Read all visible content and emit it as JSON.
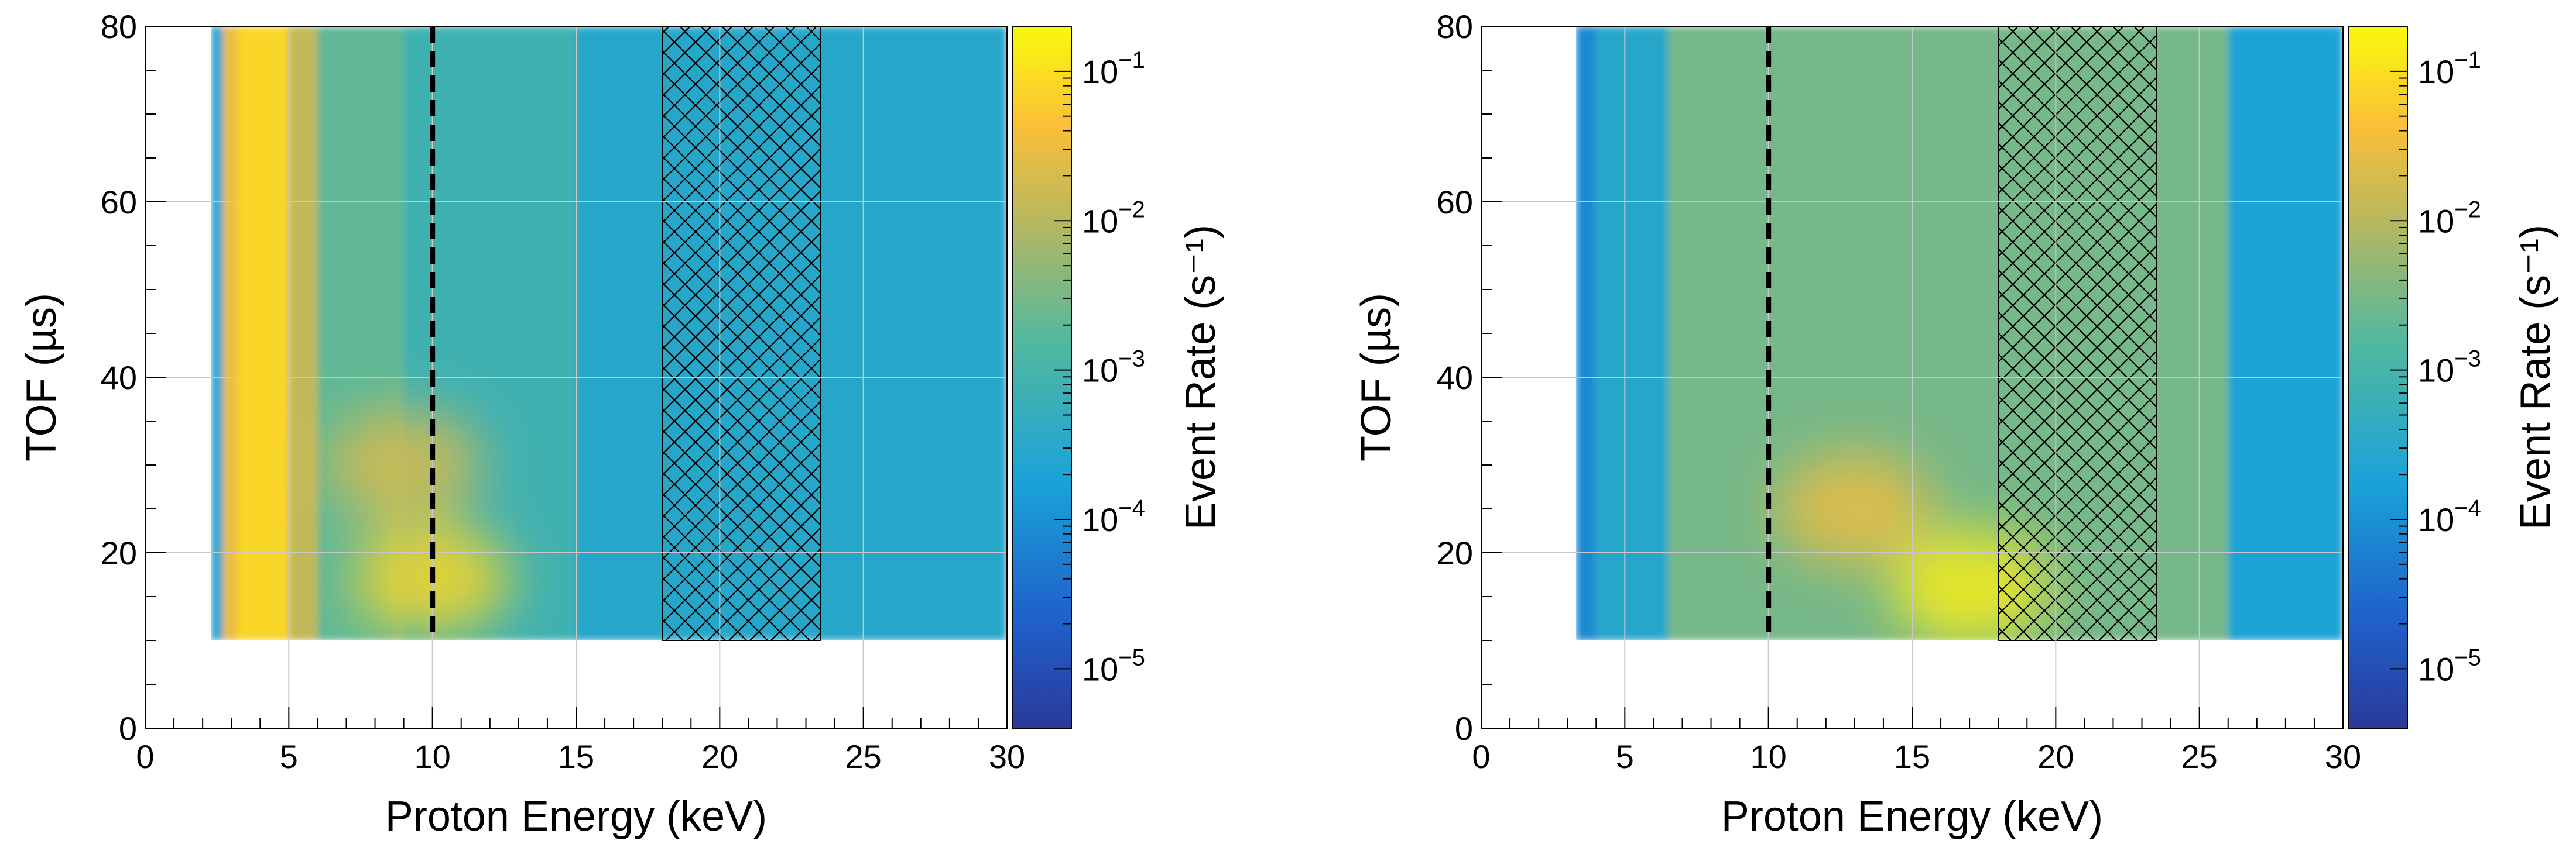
{
  "chart_data": [
    {
      "type": "heatmap",
      "title": "",
      "xlabel": "Proton Energy (keV)",
      "ylabel": "TOF (µs)",
      "colorbar_label": "Event Rate (s⁻¹)",
      "xlim": [
        0,
        30
      ],
      "ylim": [
        0,
        80
      ],
      "x_ticks": [
        0,
        5,
        10,
        15,
        20,
        25,
        30
      ],
      "y_ticks": [
        0,
        20,
        40,
        60,
        80
      ],
      "colorbar_scale": "log",
      "colorbar_range": [
        4e-06,
        0.2
      ],
      "colorbar_ticks": [
        {
          "base": "10",
          "exp": "−1"
        },
        {
          "base": "10",
          "exp": "−2"
        },
        {
          "base": "10",
          "exp": "−3"
        },
        {
          "base": "10",
          "exp": "−4"
        },
        {
          "base": "10",
          "exp": "−5"
        }
      ],
      "grid": true,
      "data_x_range": [
        2.3,
        30
      ],
      "data_y_range": [
        10,
        80
      ],
      "dashed_line_x": 10,
      "hatched_band_x": [
        18,
        23.5
      ],
      "bands": [
        {
          "x": [
            2.3,
            2.7
          ],
          "level": 0.0002
        },
        {
          "x": [
            2.7,
            3.2
          ],
          "level": 0.03
        },
        {
          "x": [
            3.2,
            5.0
          ],
          "level": 0.08
        },
        {
          "x": [
            5.0,
            6.0
          ],
          "level": 0.012
        },
        {
          "x": [
            6.0,
            9.0
          ],
          "level": 0.002
        },
        {
          "x": [
            9.0,
            15.0
          ],
          "level": 0.0008
        },
        {
          "x": [
            15.0,
            30.0
          ],
          "level": 0.0003
        }
      ],
      "hotspots": [
        {
          "x": 10,
          "y": 17,
          "level": 0.08
        },
        {
          "x": 9,
          "y": 30,
          "level": 0.02
        }
      ]
    },
    {
      "type": "heatmap",
      "title": "",
      "xlabel": "Proton Energy (keV)",
      "ylabel": "TOF (µs)",
      "colorbar_label": "Event Rate (s⁻¹)",
      "xlim": [
        0,
        30
      ],
      "ylim": [
        0,
        80
      ],
      "x_ticks": [
        0,
        5,
        10,
        15,
        20,
        25,
        30
      ],
      "y_ticks": [
        0,
        20,
        40,
        60,
        80
      ],
      "colorbar_scale": "log",
      "colorbar_range": [
        4e-06,
        0.2
      ],
      "colorbar_ticks": [
        {
          "base": "10",
          "exp": "−1"
        },
        {
          "base": "10",
          "exp": "−2"
        },
        {
          "base": "10",
          "exp": "−3"
        },
        {
          "base": "10",
          "exp": "−4"
        },
        {
          "base": "10",
          "exp": "−5"
        }
      ],
      "grid": true,
      "data_x_range": [
        3.3,
        30
      ],
      "data_y_range": [
        10,
        80
      ],
      "dashed_line_x": 10,
      "hatched_band_x": [
        18,
        23.5
      ],
      "bands": [
        {
          "x": [
            3.3,
            4.0
          ],
          "level": 8e-05
        },
        {
          "x": [
            4.0,
            6.5
          ],
          "level": 0.0003
        },
        {
          "x": [
            6.5,
            26.0
          ],
          "level": 0.003
        },
        {
          "x": [
            26.0,
            30.0
          ],
          "level": 0.0002
        }
      ],
      "hotspots": [
        {
          "x": 17,
          "y": 16,
          "level": 0.15
        },
        {
          "x": 13,
          "y": 25,
          "level": 0.03
        }
      ]
    }
  ]
}
